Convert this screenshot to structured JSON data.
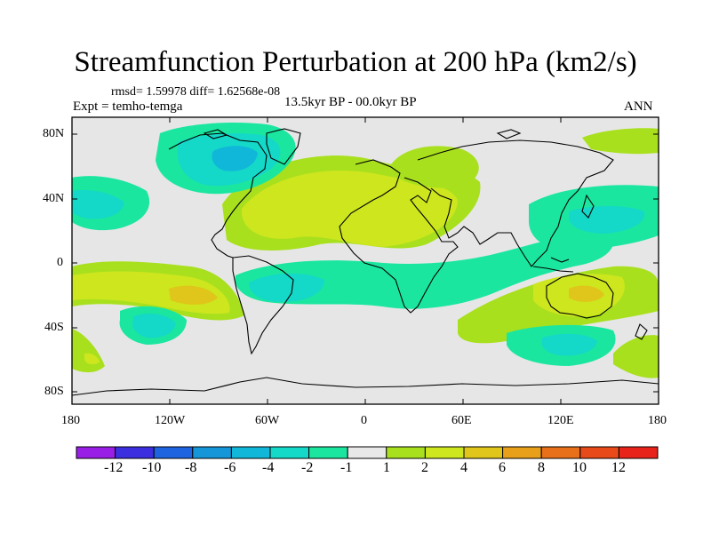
{
  "title": "Streamfunction Perturbation at 200 hPa (km2/s)",
  "stats": "rmsd= 1.59978 diff= 1.62568e-08",
  "experiment": "Expt = temho-temga",
  "period": "13.5kyr BP - 00.0kyr BP",
  "season": "ANN",
  "lat_ticks": [
    "80N",
    "40N",
    "0",
    "40S",
    "80S"
  ],
  "lon_ticks": [
    "180",
    "120W",
    "60W",
    "0",
    "60E",
    "120E",
    "180"
  ],
  "colorbar": {
    "labels": [
      "-12",
      "-10",
      "-8",
      "-6",
      "-4",
      "-2",
      "-1",
      "1",
      "2",
      "4",
      "6",
      "8",
      "10",
      "12"
    ],
    "colors": [
      "#9a1fe6",
      "#3b2fe0",
      "#1e63e0",
      "#1596d8",
      "#10b7d8",
      "#14d8c8",
      "#1be6a0",
      "#e8e8e8",
      "#a8e01e",
      "#cde61e",
      "#e0c61a",
      "#e89f1a",
      "#e8701a",
      "#e84a1a",
      "#e8241a"
    ]
  },
  "map_colors": {
    "neutral": "#e6e6e6",
    "pos1": "#a8e01e",
    "pos2": "#cde61e",
    "pos4": "#e0c61a",
    "pos6": "#e89f1a",
    "neg1": "#1be6a0",
    "neg2": "#14d8c8",
    "neg4": "#10b7d8"
  }
}
